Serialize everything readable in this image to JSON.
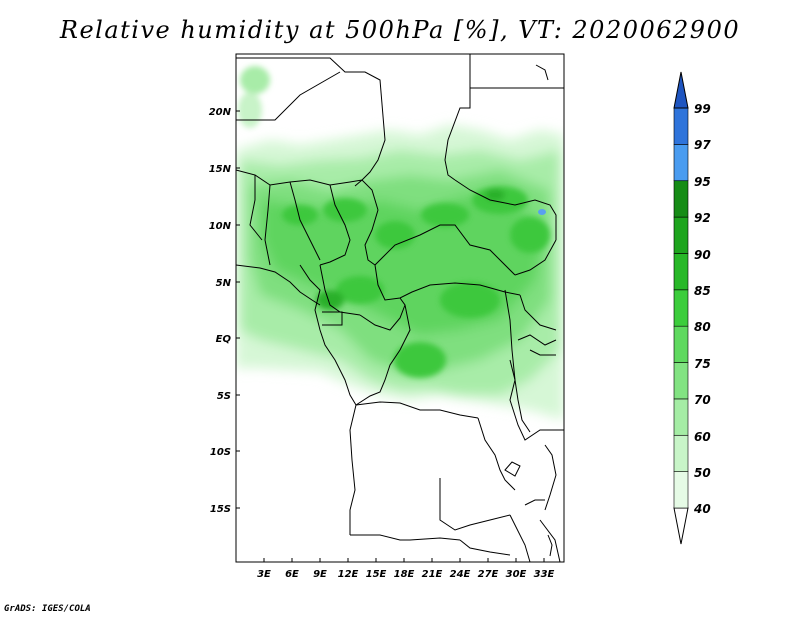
{
  "title": "Relative humidity at 500hPa [%], VT: 2020062900",
  "credit": "GrADS: IGES/COLA",
  "map": {
    "lat_labels": [
      "20N",
      "15N",
      "10N",
      "5N",
      "EQ",
      "5S",
      "10S",
      "15S"
    ],
    "lon_labels": [
      "3E",
      "6E",
      "9E",
      "12E",
      "15E",
      "18E",
      "21E",
      "24E",
      "27E",
      "30E",
      "33E"
    ]
  },
  "colorbar": {
    "levels": [
      "40",
      "50",
      "60",
      "70",
      "75",
      "80",
      "85",
      "90",
      "92",
      "95",
      "97",
      "99"
    ],
    "colors": [
      "#e6fbe6",
      "#c8f5c8",
      "#a5eda5",
      "#82e382",
      "#5fd95f",
      "#3ccd3c",
      "#28b828",
      "#1ea51e",
      "#168c16",
      "#4a9cf0",
      "#2f74db",
      "#1e55c0"
    ]
  }
}
